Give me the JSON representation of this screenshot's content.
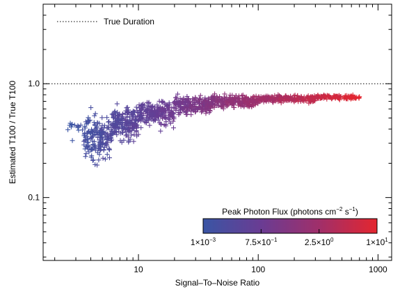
{
  "chart_data": {
    "type": "scatter",
    "title": "",
    "xlabel": "Signal–To–Noise Ratio",
    "ylabel": "Estimated T100 / True T100",
    "x_scale": "log",
    "y_scale": "log",
    "xlim": [
      1.6,
      1300
    ],
    "ylim": [
      0.028,
      5
    ],
    "x_ticks": [
      {
        "value": 10,
        "label": "10"
      },
      {
        "value": 100,
        "label": "100"
      },
      {
        "value": 1000,
        "label": "1000"
      }
    ],
    "y_ticks": [
      {
        "value": 0.1,
        "label": "0.1"
      },
      {
        "value": 1.0,
        "label": "1.0"
      }
    ],
    "grid": false,
    "marker": "+",
    "reference_line": {
      "y": 1.0,
      "style": "dotted",
      "label": "True Duration"
    },
    "legend": {
      "position": "top-left",
      "entries": [
        "True Duration"
      ]
    },
    "colorbar": {
      "title": "Peak Photon Flux (photons cm⁻² s⁻¹)",
      "title_parts": {
        "main": "Peak Photon Flux (photons cm",
        "exp1": "−2",
        "mid": " s",
        "exp2": "−1",
        "end": ")"
      },
      "position": "bottom-right",
      "colors": [
        "#3a55a4",
        "#6a3c93",
        "#a02f6a",
        "#e4262f"
      ],
      "ticks": [
        {
          "base": "1×10",
          "exp": "−3"
        },
        {
          "base": "7.5×10",
          "exp": "−1"
        },
        {
          "base": "2.5×10",
          "exp": "0"
        },
        {
          "base": "1×10",
          "exp": "1"
        }
      ]
    },
    "point_density": [
      {
        "x_range": [
          2.5,
          3.5
        ],
        "y_median": 0.4,
        "y_spread": 0.08,
        "count": 15
      },
      {
        "x_range": [
          3.5,
          6
        ],
        "y_median": 0.33,
        "y_spread": 0.16,
        "count": 180
      },
      {
        "x_range": [
          6,
          10
        ],
        "y_median": 0.45,
        "y_spread": 0.12,
        "count": 200
      },
      {
        "x_range": [
          10,
          20
        ],
        "y_median": 0.55,
        "y_spread": 0.09,
        "count": 220
      },
      {
        "x_range": [
          20,
          40
        ],
        "y_median": 0.65,
        "y_spread": 0.07,
        "count": 220
      },
      {
        "x_range": [
          40,
          100
        ],
        "y_median": 0.7,
        "y_spread": 0.045,
        "count": 250
      },
      {
        "x_range": [
          100,
          300
        ],
        "y_median": 0.74,
        "y_spread": 0.025,
        "count": 230
      },
      {
        "x_range": [
          300,
          700
        ],
        "y_median": 0.76,
        "y_spread": 0.015,
        "count": 120
      }
    ]
  }
}
